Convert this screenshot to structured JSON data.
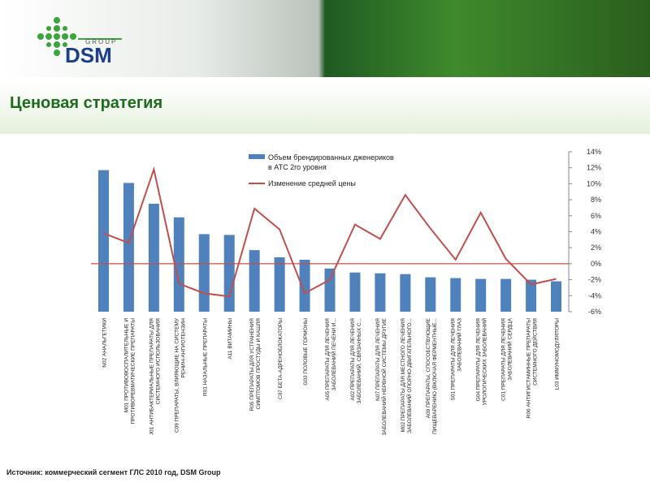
{
  "logo": {
    "name": "DSM",
    "sub": "GROUP"
  },
  "slide_title": "Ценовая стратегия",
  "source": "Источник: коммерческий сегмент ГЛС 2010 год, DSM Group",
  "chart_data": {
    "type": "bar_line",
    "categories": [
      "N02 АНАЛЬГЕТИКИ",
      "M01 ПРОТИВОВОСПАЛИТЕЛЬНЫЕ И\nПРОТИВОРЕВМАТИЧЕСКИЕ ПРЕПАРАТЫ",
      "J01 АНТИБАКТЕРИАЛЬНЫЕ ПРЕПАРАТЫ ДЛЯ\nСИСТЕМНОГО ИСПОЛЬЗОВАНИЯ",
      "C09 ПРЕПАРАТЫ, ВЛИЯЮЩИЕ НА СИСТЕМУ\nРЕНИН-АНГИОТЕНЗИН",
      "R01 НАЗАЛЬНЫЕ ПРЕПАРАТЫ",
      "A11 ВИТАМИНЫ",
      "R05 ПРЕПАРАТЫ ДЛЯ УСТРАНЕНИЯ\nСИМПТОМОВ ПРОСТУДЫ И КАШЛЯ",
      "C07 БЕТА-АДРЕНОБЛОКАТОРЫ",
      "G03 ПОЛОВЫЕ ГОРМОНЫ",
      "A05 ПРЕПАРАТЫ ДЛЯ ЛЕЧЕНИЯ\nЗАБОЛЕВАНИЙ ПЕЧЕНИ И...",
      "A02 ПРЕПАРАТЫ ДЛЯ ЛЕЧЕНИЯ\nЗАБОЛЕВАНИЙ, СВЯЗАННЫХ С...",
      "N07 ПРЕПАРАТЫ ДЛЯ ЛЕЧЕНИЯ\nЗАБОЛЕВАНИЙ НЕРВНОЙ СИСТЕМЫ ДРУГИЕ",
      "M02 ПРЕПАРАТЫ ДЛЯ МЕСТНОГО ЛЕЧЕНИЯ\nЗАБОЛЕВАНИЙ ОПОРНО-ДВИГАТЕЛЬНОГО...",
      "A09 ПРЕПАРАТЫ, СПОСОБСТВУЮЩИЕ\nПИЩЕВАРЕНИЮ (ВКЛЮЧАЯ ФЕРМЕНТНЫЕ...",
      "S01 ПРЕПАРАТЫ ДЛЯ ЛЕЧЕНИЯ\nЗАБОЛЕВАНИЙ ГЛАЗ",
      "G04 ПРЕПАРАТЫ ДЛЯ ЛЕЧЕНИЯ\nУРОЛОГИЧЕСКИХ ЗАБОЛЕВАНИЙ",
      "C01 ПРЕПАРАТЫ ДЛЯ ЛЕЧЕНИЯ\nЗАБОЛЕВАНИЙ СЕРДЦА",
      "R06 АНТИГИСТАМИННЫЕ ПРЕПАРАТЫ\nСИСТЕМНОГО ДЕЙСТВИЯ",
      "L03 ИММУНОМОДУЛЯТОРЫ"
    ],
    "series": [
      {
        "name": "Объем брендированных дженериков\nв АТС 2го уровня",
        "type": "bar",
        "color": "#4f81bd",
        "values": [
          17.7,
          16.1,
          13.5,
          11.8,
          9.7,
          9.6,
          7.7,
          6.8,
          6.5,
          5.4,
          4.9,
          4.8,
          4.7,
          4.3,
          4.2,
          4.1,
          4.1,
          4.0,
          3.8
        ]
      },
      {
        "name": "Изменение средней цены",
        "type": "line",
        "axis": "y2",
        "color": "#c0504d",
        "values": [
          3.8,
          2.6,
          11.8,
          -2.5,
          -3.7,
          -4.1,
          6.9,
          4.3,
          -3.7,
          -2,
          4.9,
          3.1,
          8.6,
          4.4,
          0.5,
          6.4,
          0.6,
          -2.6,
          -1.9
        ]
      }
    ],
    "ylim": [
      0,
      20
    ],
    "y2lim": [
      -6,
      14
    ],
    "y2ticks": [
      {
        "value": 14,
        "label": "14%"
      },
      {
        "value": 12,
        "label": "12%"
      },
      {
        "value": 10,
        "label": "10%"
      },
      {
        "value": 8,
        "label": "8%"
      },
      {
        "value": 6,
        "label": "6%"
      },
      {
        "value": 4,
        "label": "4%"
      },
      {
        "value": 2,
        "label": "2%"
      },
      {
        "value": 0,
        "label": "0%"
      },
      {
        "value": -2,
        "label": "-2%"
      },
      {
        "value": -4,
        "label": "-4%"
      },
      {
        "value": -6,
        "label": "-6%"
      }
    ],
    "zero_line_color": "#c0504d"
  }
}
